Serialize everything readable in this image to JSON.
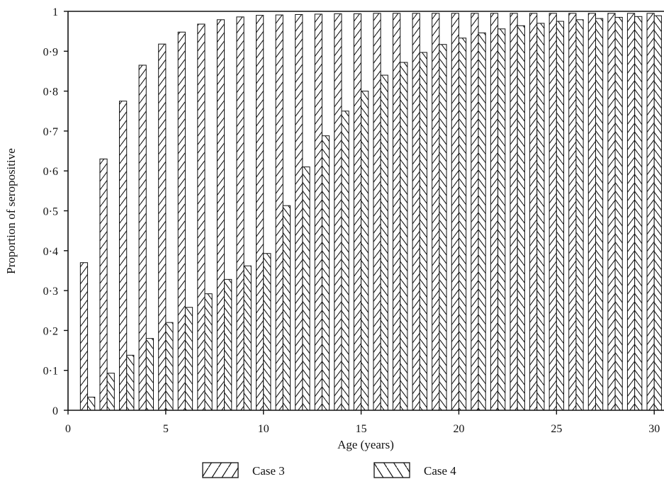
{
  "chart_data": {
    "type": "bar",
    "title": "",
    "xlabel": "Age (years)",
    "ylabel": "Proportion of seropositive",
    "xlim": [
      0,
      30.5
    ],
    "ylim": [
      0,
      1
    ],
    "x_ticks": [
      0,
      5,
      10,
      15,
      20,
      25,
      30
    ],
    "x_tick_labels": [
      "0",
      "5",
      "10",
      "15",
      "20",
      "25",
      "30"
    ],
    "y_ticks": [
      0,
      0.1,
      0.2,
      0.3,
      0.4,
      0.5,
      0.6,
      0.7,
      0.8,
      0.9,
      1
    ],
    "y_tick_labels": [
      "0",
      "0·1",
      "0·2",
      "0·3",
      "0·4",
      "0·5",
      "0·6",
      "0·7",
      "0·8",
      "0·9",
      "1"
    ],
    "grid": false,
    "legend_position": "bottom-center",
    "x": [
      1,
      2,
      3,
      4,
      5,
      6,
      7,
      8,
      9,
      10,
      11,
      12,
      13,
      14,
      15,
      16,
      17,
      18,
      19,
      20,
      21,
      22,
      23,
      24,
      25,
      26,
      27,
      28,
      29,
      30
    ],
    "series": [
      {
        "name": "Case 3",
        "pattern": "forward-hatch",
        "values": [
          0.37,
          0.63,
          0.775,
          0.865,
          0.918,
          0.948,
          0.968,
          0.979,
          0.986,
          0.99,
          0.991,
          0.992,
          0.993,
          0.994,
          0.994,
          0.995,
          0.995,
          0.995,
          0.995,
          0.995,
          0.995,
          0.995,
          0.995,
          0.995,
          0.995,
          0.995,
          0.995,
          0.995,
          0.995,
          0.995
        ]
      },
      {
        "name": "Case 4",
        "pattern": "back-hatch",
        "values": [
          0.033,
          0.093,
          0.138,
          0.18,
          0.22,
          0.258,
          0.292,
          0.328,
          0.362,
          0.393,
          0.513,
          0.61,
          0.688,
          0.75,
          0.8,
          0.84,
          0.872,
          0.897,
          0.917,
          0.933,
          0.946,
          0.956,
          0.964,
          0.97,
          0.975,
          0.979,
          0.982,
          0.985,
          0.987,
          0.989
        ]
      }
    ]
  }
}
